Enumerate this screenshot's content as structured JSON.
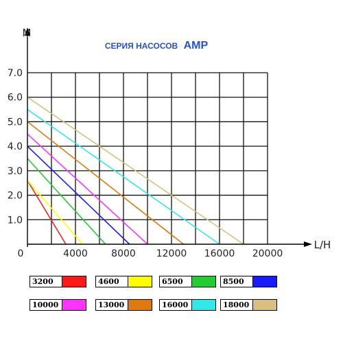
{
  "chart_data": {
    "type": "line",
    "title": "СЕРИЯ НАСОСОВ",
    "title_emphasis": "AMP",
    "ylabel": "M",
    "xlabel": "L/H",
    "xlim": [
      0,
      20000
    ],
    "ylim": [
      0,
      7.0
    ],
    "x_ticks": [
      "0",
      "4000",
      "8000",
      "12000",
      "16000",
      "20000"
    ],
    "y_ticks": [
      "1.0",
      "2.0",
      "3.0",
      "4.0",
      "5.0",
      "6.0",
      "7.0"
    ],
    "grid": true,
    "legend_placement": "bottom",
    "series": [
      {
        "name": "3200",
        "color": "#ff1a1a",
        "x": [
          0,
          3200
        ],
        "y": [
          2.6,
          0
        ]
      },
      {
        "name": "4600",
        "color": "#ffff00",
        "x": [
          0,
          4600
        ],
        "y": [
          2.6,
          0
        ]
      },
      {
        "name": "6500",
        "color": "#22cc33",
        "x": [
          0,
          6500
        ],
        "y": [
          3.5,
          0
        ]
      },
      {
        "name": "8500",
        "color": "#1a1aff",
        "x": [
          0,
          8500
        ],
        "y": [
          4.0,
          0
        ]
      },
      {
        "name": "10000",
        "color": "#ff33ff",
        "x": [
          0,
          10000
        ],
        "y": [
          4.5,
          0
        ]
      },
      {
        "name": "13000",
        "color": "#e07a10",
        "x": [
          0,
          13000
        ],
        "y": [
          5.0,
          0
        ]
      },
      {
        "name": "16000",
        "color": "#33e8e8",
        "x": [
          0,
          16000
        ],
        "y": [
          5.5,
          0
        ]
      },
      {
        "name": "18000",
        "color": "#d9c080",
        "x": [
          0,
          18000
        ],
        "y": [
          6.0,
          0
        ]
      }
    ]
  }
}
